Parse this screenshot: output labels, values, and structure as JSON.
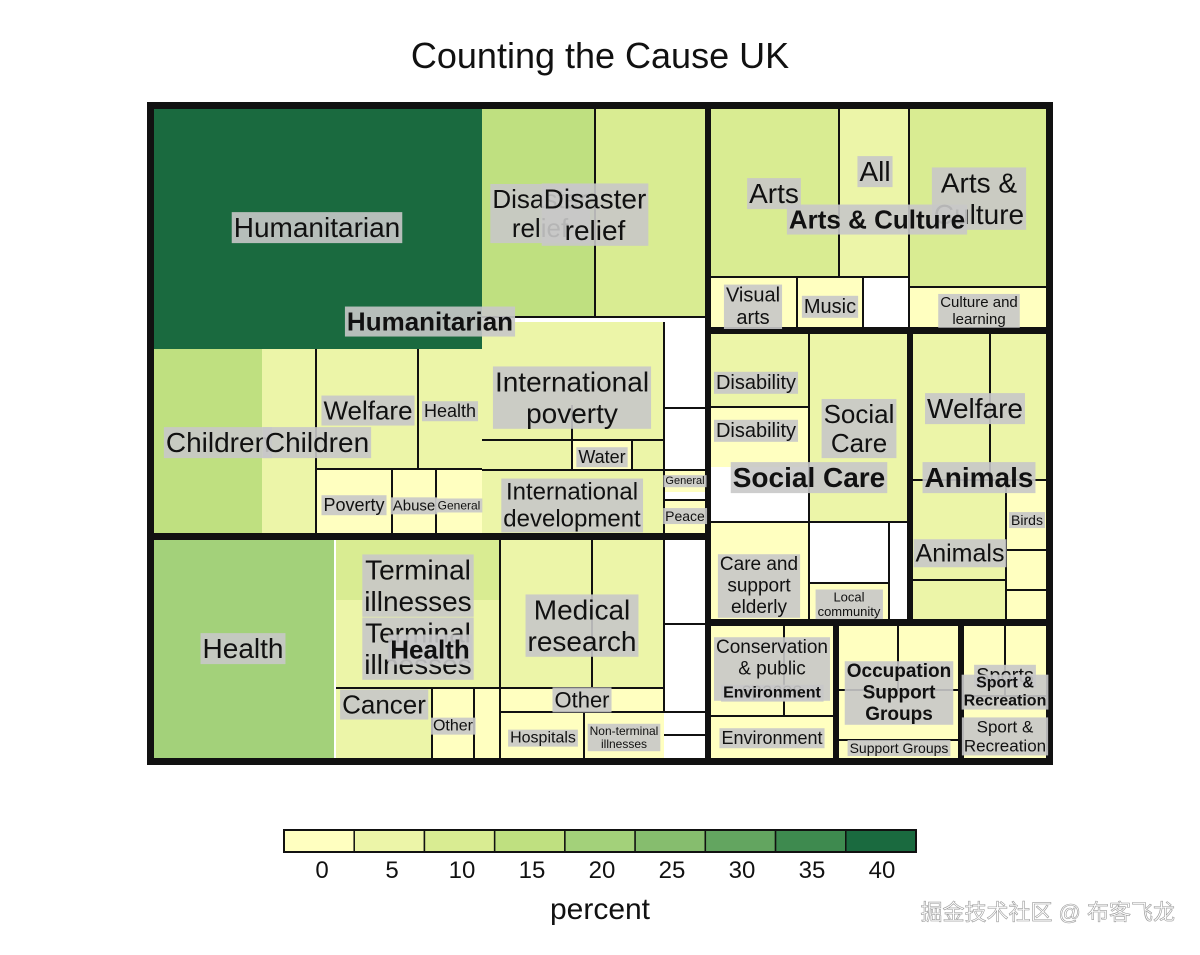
{
  "chart_data": {
    "type": "treemap",
    "title": "Counting the Cause UK",
    "legend": {
      "title": "percent",
      "placement": "bottom",
      "ticks": [
        "0",
        "5",
        "10",
        "15",
        "20",
        "25",
        "30",
        "35",
        "40"
      ],
      "colors": [
        "#ffffc0",
        "#ecf5a8",
        "#d9ec92",
        "#bfe080",
        "#a3d17a",
        "#86bd6e",
        "#63a560",
        "#3e8a4f",
        "#1a6a3f"
      ]
    },
    "groups": [
      {
        "name": "Humanitarian",
        "cells": [
          {
            "label": "Humanitarian",
            "value": 40
          },
          {
            "label": "Disaster relief",
            "value": 14
          },
          {
            "label": "Disaster relief",
            "value": 10
          },
          {
            "label": "International poverty",
            "value": 6
          },
          {
            "label": "Water",
            "value": 1
          },
          {
            "label": "International development",
            "value": 3
          },
          {
            "label": "General",
            "value": 1
          },
          {
            "label": "Peace",
            "value": 1
          },
          {
            "label": "Children",
            "value": 17
          },
          {
            "label": "Children",
            "value": 5
          },
          {
            "label": "Welfare",
            "value": 5
          },
          {
            "label": "Health",
            "value": 3
          },
          {
            "label": "Poverty",
            "value": 2
          },
          {
            "label": "Abuse",
            "value": 1
          },
          {
            "label": "General",
            "value": 1
          }
        ]
      },
      {
        "name": "Health",
        "cells": [
          {
            "label": "Health",
            "value": 22
          },
          {
            "label": "Terminal illnesses",
            "value": 8
          },
          {
            "label": "Terminal illnesses",
            "value": 6
          },
          {
            "label": "Cancer",
            "value": 4
          },
          {
            "label": "Other",
            "value": 1
          },
          {
            "label": "Medical research",
            "value": 7
          },
          {
            "label": "Other",
            "value": 1
          },
          {
            "label": "Hospitals",
            "value": 1
          },
          {
            "label": "Non-terminal illnesses",
            "value": 1
          }
        ]
      },
      {
        "name": "Arts & Culture",
        "cells": [
          {
            "label": "Arts",
            "value": 9
          },
          {
            "label": "All",
            "value": 3
          },
          {
            "label": "Arts & Culture",
            "value": 12
          },
          {
            "label": "Visual arts",
            "value": 1
          },
          {
            "label": "Music",
            "value": 1
          },
          {
            "label": "Culture and learning",
            "value": 1
          }
        ]
      },
      {
        "name": "Social Care",
        "cells": [
          {
            "label": "Disability",
            "value": 3
          },
          {
            "label": "Disability",
            "value": 2
          },
          {
            "label": "Social Care",
            "value": 7
          },
          {
            "label": "Care and support elderly",
            "value": 2
          },
          {
            "label": "Local community",
            "value": 1
          }
        ]
      },
      {
        "name": "Animals",
        "cells": [
          {
            "label": "Welfare",
            "value": 4
          },
          {
            "label": "Animals",
            "value": 4
          },
          {
            "label": "Birds",
            "value": 1
          }
        ]
      },
      {
        "name": "Environment",
        "cells": [
          {
            "label": "Conservation & public spaces",
            "value": 2
          },
          {
            "label": "Environment",
            "value": 1
          }
        ]
      },
      {
        "name": "Occupation Support Groups",
        "cells": [
          {
            "label": "Support Groups",
            "value": 2
          }
        ]
      },
      {
        "name": "Sport & Recreation",
        "cells": [
          {
            "label": "Sports",
            "value": 1
          },
          {
            "label": "Sport & Recreation",
            "value": 1
          }
        ]
      }
    ]
  },
  "watermark": "掘金技术社区 @ 布客飞龙"
}
